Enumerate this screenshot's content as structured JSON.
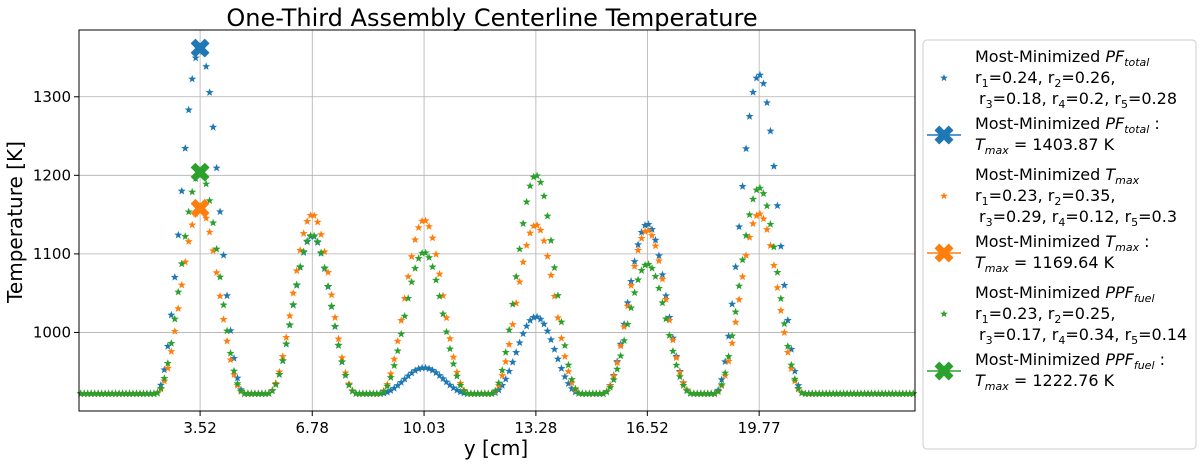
{
  "chart_data": {
    "type": "scatter",
    "title": "One-Third Assembly Centerline Temperature",
    "xlabel": "y [cm]",
    "ylabel": "Temperature [K]",
    "xlim": [
      0,
      24.3
    ],
    "ylim": [
      900,
      1385
    ],
    "xticks": [
      3.52,
      6.78,
      10.03,
      13.28,
      16.52,
      19.77
    ],
    "xtick_labels": [
      "3.52",
      "6.78",
      "10.03",
      "13.28",
      "16.52",
      "19.77"
    ],
    "yticks": [
      1000,
      1100,
      1200,
      1300
    ],
    "ytick_labels": [
      "1000",
      "1100",
      "1200",
      "1300"
    ],
    "grid": true,
    "legend_position": "outside-right",
    "baseline": 922,
    "sample_count": 240,
    "series": [
      {
        "key": "total",
        "color": "#1f77b4",
        "peaks": [
          {
            "center": 3.52,
            "height": 1362,
            "width": 0.62
          },
          {
            "center": 6.78,
            "height": 1123,
            "width": 0.62
          },
          {
            "center": 10.03,
            "height": 955,
            "width": 0.72
          },
          {
            "center": 13.28,
            "height": 1020,
            "width": 0.62
          },
          {
            "center": 16.52,
            "height": 1138,
            "width": 0.62
          },
          {
            "center": 19.77,
            "height": 1328,
            "width": 0.62
          }
        ],
        "max_marker": {
          "x": 3.52,
          "y": 1362
        },
        "legend_lines": [
          [
            "Most-Minimized ",
            "PF",
            "total"
          ],
          [
            " r",
            "1",
            "=0.24, r",
            "2",
            "=0.26,"
          ],
          [
            "r",
            "3",
            "=0.18, r",
            "4",
            "=0.2, r",
            "5",
            "=0.28"
          ]
        ],
        "max_legend_lines": [
          [
            "Most-Minimized ",
            "PF",
            "total",
            " :"
          ],
          [
            " T",
            "max",
            " = 1403.87 K"
          ]
        ]
      },
      {
        "key": "tmax",
        "color": "#ff7f0e",
        "peaks": [
          {
            "center": 3.52,
            "height": 1158,
            "width": 0.62
          },
          {
            "center": 6.78,
            "height": 1150,
            "width": 0.62
          },
          {
            "center": 10.03,
            "height": 1143,
            "width": 0.62
          },
          {
            "center": 13.28,
            "height": 1137,
            "width": 0.62
          },
          {
            "center": 16.52,
            "height": 1130,
            "width": 0.62
          },
          {
            "center": 19.77,
            "height": 1151,
            "width": 0.62
          }
        ],
        "max_marker": {
          "x": 3.52,
          "y": 1158
        },
        "legend_lines": [
          [
            "Most-Minimized ",
            "T",
            "max"
          ],
          [
            " r",
            "1",
            "=0.23, r",
            "2",
            "=0.35,"
          ],
          [
            "r",
            "3",
            "=0.29, r",
            "4",
            "=0.12, r",
            "5",
            "=0.3"
          ]
        ],
        "max_legend_lines": [
          [
            "Most-Minimized ",
            "T",
            "max",
            " :"
          ],
          [
            " T",
            "max",
            " = 1169.64 K"
          ]
        ]
      },
      {
        "key": "fuel",
        "color": "#2ca02c",
        "peaks": [
          {
            "center": 3.52,
            "height": 1204,
            "width": 0.62
          },
          {
            "center": 6.78,
            "height": 1124,
            "width": 0.62
          },
          {
            "center": 10.03,
            "height": 1102,
            "width": 0.62
          },
          {
            "center": 13.28,
            "height": 1200,
            "width": 0.62
          },
          {
            "center": 16.52,
            "height": 1087,
            "width": 0.62
          },
          {
            "center": 19.77,
            "height": 1184,
            "width": 0.62
          }
        ],
        "max_marker": {
          "x": 3.52,
          "y": 1204
        },
        "legend_lines": [
          [
            "Most-Minimized ",
            "PPF",
            "fuel"
          ],
          [
            " r",
            "1",
            "=0.23, r",
            "2",
            "=0.25,"
          ],
          [
            "r",
            "3",
            "=0.17, r",
            "4",
            "=0.34, r",
            "5",
            "=0.14"
          ]
        ],
        "max_legend_lines": [
          [
            "Most-Minimized ",
            "PPF",
            "fuel",
            " :"
          ],
          [
            " T",
            "max",
            " = 1222.76 K"
          ]
        ]
      }
    ]
  }
}
